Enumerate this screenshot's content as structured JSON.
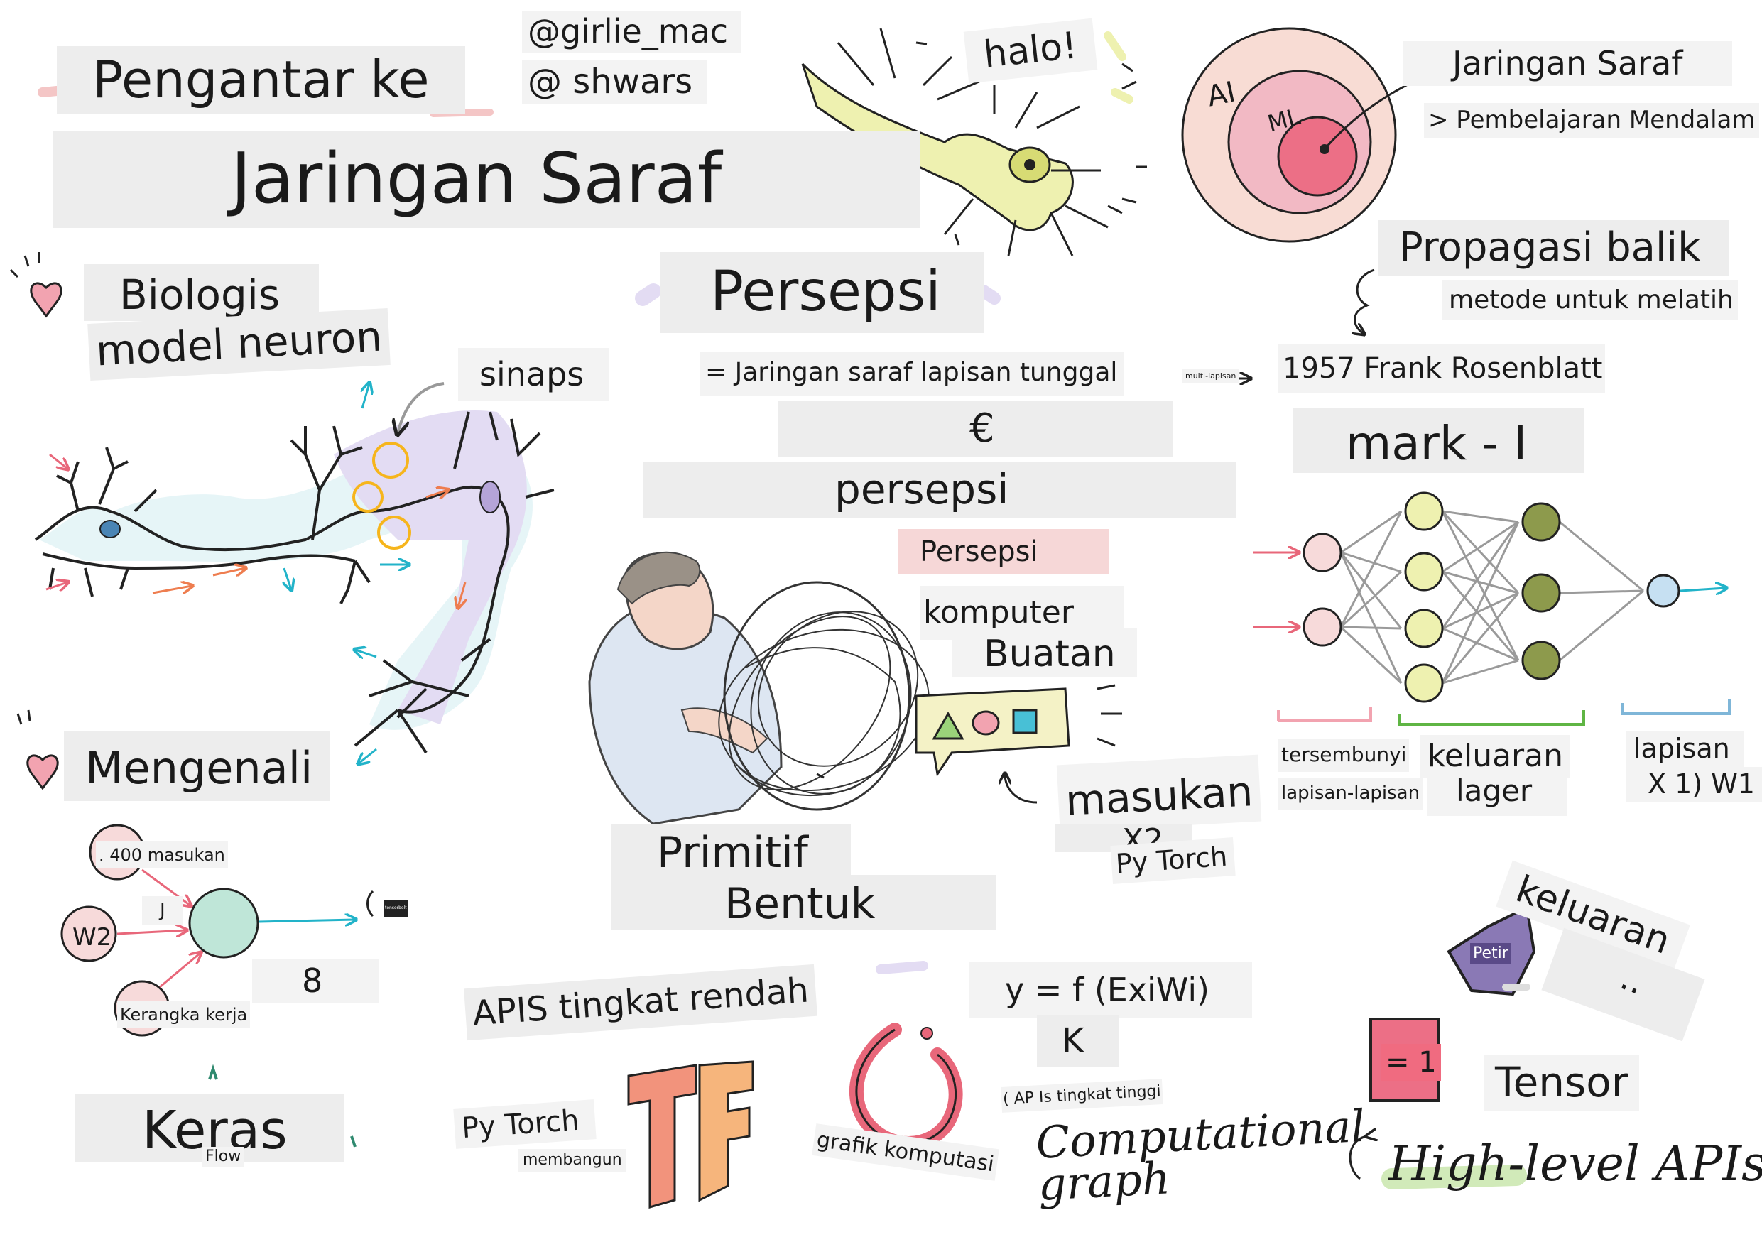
{
  "title": {
    "line1": "Pengantar ke",
    "line2": "Jaringan Saraf"
  },
  "authors": [
    "@girlie_mac",
    "@ shwars"
  ],
  "greeting": "halo!",
  "venn": {
    "ai": "AI",
    "ml": "ML",
    "caption": "Jaringan Saraf",
    "sub": "> Pembelajaran Mendalam"
  },
  "biology": {
    "title1": "Biologis",
    "title2": "model neuron",
    "synapse": "sinaps"
  },
  "perceptron": {
    "title": "Persepsi",
    "definition": "= Jaringan saraf lapisan tunggal",
    "symbol": "€",
    "word": "persepsi",
    "multi": "multi-lapisan",
    "inventor": "1957 Frank Rosenblatt",
    "machine": "mark - I",
    "tag1": "Persepsi",
    "tag2": "komputer",
    "tag3": "Buatan",
    "inputs": "masukan",
    "x2": "X2",
    "pytorch": "Py Torch"
  },
  "backprop": {
    "title": "Propagasi balik",
    "sub": "metode untuk melatih"
  },
  "network_labels": {
    "hidden1": "tersembunyi",
    "hidden2": "lapisan-lapisan",
    "output1": "keluaran",
    "output2": "lager",
    "layer1": "lapisan",
    "layer2": "X 1) W1"
  },
  "recognize": {
    "title": "Mengenali",
    "inputs": ". 400 masukan",
    "w2": "W2",
    "j": "J",
    "framework": "Kerangka kerja",
    "tiny": "tensorbelt",
    "eight": "8"
  },
  "primitives": {
    "line1": "Primitif",
    "line2": "Bentuk"
  },
  "lowlevel": "APIS tingkat rendah",
  "formula": {
    "eq": "y = f (ExiWi)",
    "k": "K",
    "highlevel_note": "( AP Is tingkat tinggi"
  },
  "output_hex": {
    "word": "keluaran",
    "dots": "..",
    "hex": "Petir"
  },
  "tensor": {
    "box": "= 1",
    "word": "Tensor"
  },
  "keras": {
    "word": "Keras",
    "flow": "Flow"
  },
  "pytorch2": {
    "word": "Py Torch",
    "build": "membangun"
  },
  "compgraph": {
    "id_label": "grafik komputasi",
    "en_label": "Computational graph"
  },
  "highlevel": "High-level APIs",
  "colors": {
    "neuron_yellow": "#eef1b0",
    "neuron_purple": "#e3dcf3",
    "neuron_blue": "#d6eef2",
    "pink": "#f2b9b9",
    "red": "#e8677a",
    "olive": "#8d9a4c",
    "cyan": "#22b3c9",
    "orange": "#ee7d4f",
    "hex_purple": "#8a79b5"
  }
}
